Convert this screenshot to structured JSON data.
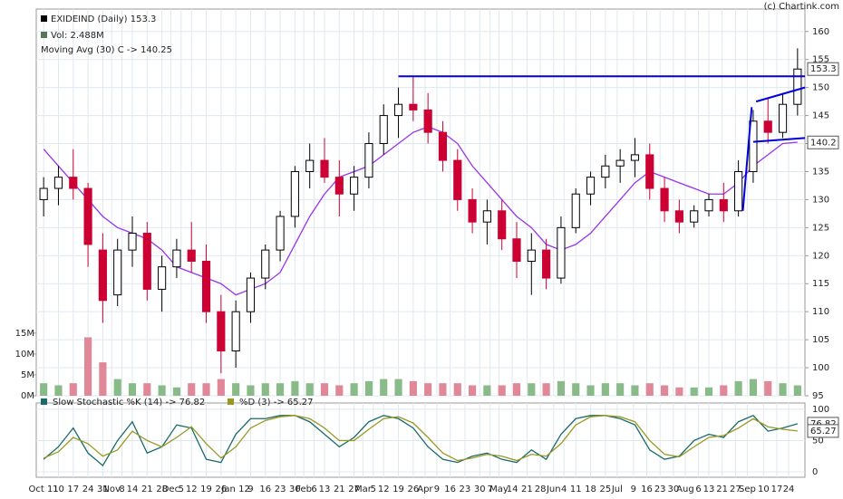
{
  "chart_data": [
    {
      "type": "candlestick",
      "title": "EXIDEIND (Daily) 153.3",
      "volume_label": "Vol: 2.488M",
      "credit": "(c) Chartink.com",
      "x": [
        0,
        1,
        2,
        3,
        4,
        5,
        6,
        7,
        8,
        9,
        10,
        11,
        12,
        13,
        14,
        15,
        16,
        17,
        18,
        19,
        20,
        21,
        22,
        23,
        24,
        25,
        26,
        27,
        28,
        29,
        30,
        31,
        32,
        33,
        34,
        35,
        36,
        37,
        38,
        39,
        40,
        41,
        42,
        43,
        44,
        45,
        46,
        47,
        48,
        49,
        50,
        51
      ],
      "open": [
        130,
        132,
        134,
        132,
        121,
        113,
        121,
        124,
        114,
        118,
        121,
        119,
        110,
        103,
        110,
        116,
        121,
        127,
        135,
        137,
        134,
        131,
        134,
        140,
        145,
        147,
        146,
        142,
        137,
        130,
        126,
        128,
        123,
        119,
        121,
        116,
        125,
        131,
        134,
        136,
        137,
        138,
        132,
        128,
        126,
        128,
        130,
        128,
        135,
        144,
        142,
        147
      ],
      "high": [
        134,
        136,
        139,
        133,
        124,
        123,
        127,
        126,
        120,
        123,
        126,
        122,
        113,
        112,
        117,
        122,
        128,
        136,
        140,
        141,
        137,
        136,
        142,
        147,
        150,
        152,
        149,
        144,
        139,
        132,
        130,
        130,
        126,
        124,
        123,
        127,
        132,
        135,
        138,
        139,
        141,
        140,
        134,
        130,
        129,
        131,
        133,
        137,
        146,
        148,
        149,
        157
      ],
      "low": [
        127,
        129,
        130,
        118,
        108,
        111,
        118,
        112,
        110,
        116,
        117,
        108,
        99,
        100,
        108,
        114,
        119,
        125,
        132,
        133,
        127,
        128,
        132,
        138,
        141,
        144,
        140,
        135,
        128,
        124,
        122,
        121,
        116,
        113,
        114,
        115,
        124,
        129,
        132,
        133,
        134,
        130,
        126,
        124,
        125,
        127,
        126,
        127,
        133,
        140,
        141,
        145
      ],
      "close": [
        132,
        134,
        132,
        122,
        112,
        121,
        124,
        114,
        118,
        121,
        119,
        110,
        103,
        110,
        116,
        121,
        127,
        135,
        137,
        134,
        131,
        134,
        140,
        145,
        147,
        146,
        142,
        137,
        130,
        126,
        128,
        123,
        119,
        121,
        116,
        125,
        131,
        134,
        136,
        137,
        138,
        132,
        128,
        126,
        128,
        130,
        128,
        135,
        144,
        142,
        147,
        153.3
      ],
      "up_color": "#000000",
      "down_color": "#cc0033",
      "xlim": [
        -0.5,
        51.5
      ],
      "ylim": [
        95,
        164
      ],
      "yticks": [
        95,
        100,
        105,
        110,
        115,
        120,
        125,
        130,
        135,
        140,
        145,
        150,
        155,
        160
      ],
      "xticks": [
        {
          "value": 0,
          "label": "Oct 11"
        },
        {
          "value": 1,
          "label": "10"
        },
        {
          "value": 2,
          "label": "17"
        },
        {
          "value": 3,
          "label": "24"
        },
        {
          "value": 4,
          "label": "31"
        },
        {
          "value": 4.6,
          "label": "Nov"
        },
        {
          "value": 5.3,
          "label": "8"
        },
        {
          "value": 6,
          "label": "14"
        },
        {
          "value": 7,
          "label": "21"
        },
        {
          "value": 8,
          "label": "28"
        },
        {
          "value": 8.6,
          "label": "Dec"
        },
        {
          "value": 9.3,
          "label": "5"
        },
        {
          "value": 10,
          "label": "12"
        },
        {
          "value": 11,
          "label": "19"
        },
        {
          "value": 12,
          "label": "26"
        },
        {
          "value": 13,
          "label": "Jan 12"
        },
        {
          "value": 14,
          "label": "9"
        },
        {
          "value": 15,
          "label": "16"
        },
        {
          "value": 16,
          "label": "23"
        },
        {
          "value": 17,
          "label": "30"
        },
        {
          "value": 17.6,
          "label": "Feb"
        },
        {
          "value": 18.3,
          "label": "6"
        },
        {
          "value": 19,
          "label": "13"
        },
        {
          "value": 20,
          "label": "21"
        },
        {
          "value": 21,
          "label": "27"
        },
        {
          "value": 21.6,
          "label": "Mar"
        },
        {
          "value": 22.3,
          "label": "5"
        },
        {
          "value": 23,
          "label": "12"
        },
        {
          "value": 24,
          "label": "19"
        },
        {
          "value": 25,
          "label": "26"
        },
        {
          "value": 25.8,
          "label": "Apr"
        },
        {
          "value": 26.6,
          "label": "9"
        },
        {
          "value": 27.5,
          "label": "16"
        },
        {
          "value": 28.5,
          "label": "23"
        },
        {
          "value": 29.5,
          "label": "30"
        },
        {
          "value": 30.2,
          "label": "7"
        },
        {
          "value": 30.8,
          "label": "May"
        },
        {
          "value": 31.7,
          "label": "14"
        },
        {
          "value": 32.7,
          "label": "21"
        },
        {
          "value": 33.6,
          "label": "28"
        },
        {
          "value": 34.5,
          "label": "Jun"
        },
        {
          "value": 35.2,
          "label": "4"
        },
        {
          "value": 36,
          "label": "11"
        },
        {
          "value": 37,
          "label": "18"
        },
        {
          "value": 38,
          "label": "25"
        },
        {
          "value": 38.8,
          "label": "Jul"
        },
        {
          "value": 39.9,
          "label": "9"
        },
        {
          "value": 40.8,
          "label": "16"
        },
        {
          "value": 41.7,
          "label": "23"
        },
        {
          "value": 42.6,
          "label": "30"
        },
        {
          "value": 43.4,
          "label": "Aug"
        },
        {
          "value": 44.3,
          "label": "6"
        },
        {
          "value": 45,
          "label": "13"
        },
        {
          "value": 45.9,
          "label": "21"
        },
        {
          "value": 46.8,
          "label": "27"
        },
        {
          "value": 47.6,
          "label": "Sep"
        },
        {
          "value": 48.7,
          "label": "10"
        },
        {
          "value": 49.6,
          "label": "17"
        },
        {
          "value": 50.4,
          "label": "24"
        }
      ],
      "grid": true,
      "price_markers": [
        153.3,
        140.2
      ],
      "trendline_color": "#0000dd",
      "trendlines": [
        {
          "x": [
            24,
            51.5
          ],
          "y": [
            152,
            152
          ]
        },
        {
          "x": [
            47.3,
            47.9
          ],
          "y": [
            128,
            146.5
          ]
        },
        {
          "x": [
            48.2,
            51.5
          ],
          "y": [
            147.5,
            150
          ]
        },
        {
          "x": [
            48,
            51.5
          ],
          "y": [
            140.3,
            141
          ]
        }
      ],
      "volume": {
        "values": [
          3,
          2.5,
          3,
          14,
          8,
          4,
          3,
          3,
          2.5,
          2,
          3,
          3,
          4,
          3,
          2.5,
          3,
          3,
          3.5,
          3,
          3,
          2.5,
          3,
          3.5,
          4,
          4,
          3.5,
          3,
          3,
          3,
          2.5,
          2.5,
          2.5,
          3,
          3,
          3,
          3.5,
          3,
          2.5,
          3,
          3,
          2.5,
          3,
          2.5,
          2,
          2,
          2,
          2.5,
          3.5,
          4,
          3.5,
          3,
          2.488
        ],
        "up_color": "#88bb88",
        "down_color": "#e08898",
        "ylim": [
          0,
          92.6
        ],
        "yticks": [
          {
            "value": 0,
            "label": "0M"
          },
          {
            "value": 5,
            "label": "5M"
          },
          {
            "value": 10,
            "label": "10M"
          },
          {
            "value": 15,
            "label": "15M"
          }
        ]
      },
      "moving_average": {
        "name": "Moving Avg (30) C -> 140.25",
        "color": "#9933ee",
        "values": [
          139,
          136,
          133,
          130,
          127,
          125,
          124,
          123,
          121,
          118,
          117,
          116,
          115,
          113,
          114,
          115,
          117,
          122,
          127,
          131,
          134,
          135,
          136,
          138,
          140,
          142,
          143,
          142,
          140,
          136,
          133,
          130,
          127,
          125,
          122,
          121,
          122,
          124,
          127,
          130,
          133,
          135,
          134,
          133,
          132,
          131,
          131,
          133,
          136,
          138,
          140,
          140.25
        ]
      }
    },
    {
      "type": "line",
      "ylim": [
        -8.7,
        110
      ],
      "yticks": [
        0,
        50,
        100
      ],
      "grid": true,
      "series": [
        {
          "name": "Slow Stochastic %K (14) -> 76.82",
          "color": "#1a6a6a",
          "values": [
            20,
            40,
            70,
            30,
            10,
            50,
            80,
            30,
            40,
            75,
            70,
            20,
            15,
            60,
            85,
            85,
            90,
            90,
            80,
            60,
            40,
            55,
            80,
            90,
            85,
            70,
            40,
            20,
            15,
            25,
            30,
            20,
            15,
            35,
            20,
            60,
            85,
            90,
            90,
            85,
            75,
            35,
            20,
            25,
            50,
            60,
            55,
            80,
            90,
            65,
            70,
            76.82
          ]
        },
        {
          "name": "%D (3) -> 65.27",
          "color": "#999922",
          "values": [
            22,
            32,
            55,
            45,
            25,
            35,
            65,
            50,
            40,
            55,
            72,
            45,
            22,
            40,
            70,
            82,
            88,
            90,
            85,
            70,
            50,
            50,
            68,
            85,
            88,
            78,
            55,
            30,
            18,
            22,
            28,
            25,
            18,
            28,
            25,
            45,
            75,
            88,
            90,
            88,
            80,
            50,
            28,
            24,
            40,
            55,
            58,
            70,
            85,
            72,
            68,
            65.27
          ]
        }
      ]
    }
  ]
}
